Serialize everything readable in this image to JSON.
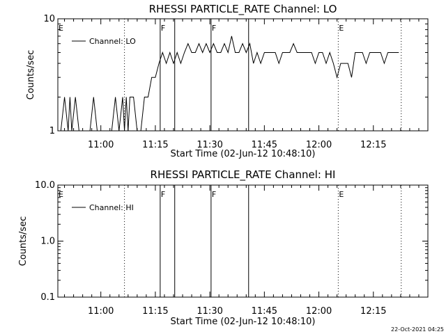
{
  "stamp": "22-Oct-2021 04:25",
  "chart_data": [
    {
      "type": "line",
      "title": "RHESSI PARTICLE_RATE Channel: LO",
      "xlabel": "Start Time (02-Jun-12 10:48:10)",
      "ylabel": "Counts/sec",
      "yscale": "log",
      "ylim": [
        1,
        10
      ],
      "yticks": [
        "1",
        "10"
      ],
      "xlim": [
        "10:48:10",
        "12:30:00"
      ],
      "xticks": [
        "11:00",
        "11:15",
        "11:30",
        "11:45",
        "12:00",
        "12:15"
      ],
      "legend": "top-left",
      "series": [
        {
          "name": "Channel: LO",
          "x": [
            "10:49:00",
            "10:50:00",
            "10:51:00",
            "10:51:30",
            "10:52:00",
            "10:53:00",
            "10:54:00",
            "10:55:00",
            "10:56:00",
            "10:57:00",
            "10:58:00",
            "10:59:00",
            "11:00:00",
            "11:01:00",
            "11:02:00",
            "11:03:00",
            "11:04:00",
            "11:05:00",
            "11:06:00",
            "11:06:30",
            "11:07:00",
            "11:07:30",
            "11:08:00",
            "11:09:00",
            "11:10:00",
            "11:11:00",
            "11:12:00",
            "11:13:00",
            "11:14:00",
            "11:15:00",
            "11:16:00",
            "11:17:00",
            "11:18:00",
            "11:19:00",
            "11:20:00",
            "11:21:00",
            "11:22:00",
            "11:23:00",
            "11:24:00",
            "11:25:00",
            "11:26:00",
            "11:27:00",
            "11:28:00",
            "11:29:00",
            "11:30:00",
            "11:31:00",
            "11:32:00",
            "11:33:00",
            "11:34:00",
            "11:35:00",
            "11:36:00",
            "11:37:00",
            "11:38:00",
            "11:39:00",
            "11:40:00",
            "11:41:00",
            "11:42:00",
            "11:43:00",
            "11:44:00",
            "11:45:00",
            "11:46:00",
            "11:47:00",
            "11:48:00",
            "11:49:00",
            "11:50:00",
            "11:51:00",
            "11:52:00",
            "11:53:00",
            "11:54:00",
            "11:55:00",
            "11:56:00",
            "11:57:00",
            "11:58:00",
            "11:59:00",
            "12:00:00",
            "12:01:00",
            "12:02:00",
            "12:03:00",
            "12:04:00",
            "12:05:00",
            "12:06:00",
            "12:07:00",
            "12:08:00",
            "12:09:00",
            "12:10:00",
            "12:11:00",
            "12:12:00",
            "12:13:00",
            "12:14:00",
            "12:15:00",
            "12:16:00",
            "12:17:00",
            "12:18:00",
            "12:19:00",
            "12:20:00",
            "12:21:00",
            "12:22:00"
          ],
          "values": [
            1,
            2,
            1,
            2,
            1,
            2,
            1,
            1,
            1,
            1,
            2,
            1,
            1,
            1,
            1,
            1,
            2,
            1,
            2,
            1,
            2,
            1,
            2,
            2,
            1,
            1,
            2,
            2,
            3,
            3,
            4,
            5,
            4,
            5,
            4,
            5,
            4,
            5,
            6,
            5,
            5,
            6,
            5,
            6,
            5,
            6,
            5,
            5,
            6,
            5,
            7,
            5,
            5,
            6,
            5,
            6,
            4,
            5,
            4,
            5,
            5,
            5,
            5,
            4,
            5,
            5,
            5,
            6,
            5,
            5,
            5,
            5,
            5,
            4,
            5,
            5,
            4,
            5,
            4,
            3,
            4,
            4,
            4,
            3,
            5,
            5,
            5,
            4,
            5,
            5,
            5,
            5,
            4,
            5,
            5,
            5,
            5
          ]
        }
      ],
      "markers": [
        {
          "label": "E",
          "time": "10:48:10",
          "style": "dotted"
        },
        {
          "label": "",
          "time": "11:06:30",
          "style": "dotted"
        },
        {
          "label": "F",
          "time": "11:16:20",
          "style": "solid"
        },
        {
          "label": "",
          "time": "11:20:20",
          "style": "solid"
        },
        {
          "label": "F",
          "time": "11:30:20",
          "style": "solid"
        },
        {
          "label": "",
          "time": "11:40:40",
          "style": "solid"
        },
        {
          "label": "E",
          "time": "12:05:20",
          "style": "dotted"
        },
        {
          "label": "",
          "time": "12:22:40",
          "style": "dotted"
        }
      ]
    },
    {
      "type": "line",
      "title": "RHESSI PARTICLE_RATE Channel: HI",
      "xlabel": "Start Time (02-Jun-12 10:48:10)",
      "ylabel": "Counts/sec",
      "yscale": "log",
      "ylim": [
        0.1,
        10
      ],
      "yticks": [
        "0.1",
        "1.0",
        "10.0"
      ],
      "xlim": [
        "10:48:10",
        "12:30:00"
      ],
      "xticks": [
        "11:00",
        "11:15",
        "11:30",
        "11:45",
        "12:00",
        "12:15"
      ],
      "legend": "top-left",
      "series": [
        {
          "name": "Channel: HI",
          "x": [],
          "values": []
        }
      ],
      "markers": [
        {
          "label": "E",
          "time": "10:48:10",
          "style": "dotted"
        },
        {
          "label": "",
          "time": "11:06:30",
          "style": "dotted"
        },
        {
          "label": "F",
          "time": "11:16:20",
          "style": "solid"
        },
        {
          "label": "",
          "time": "11:20:20",
          "style": "solid"
        },
        {
          "label": "F",
          "time": "11:30:20",
          "style": "solid"
        },
        {
          "label": "",
          "time": "11:40:40",
          "style": "solid"
        },
        {
          "label": "E",
          "time": "12:05:20",
          "style": "dotted"
        },
        {
          "label": "",
          "time": "12:22:40",
          "style": "dotted"
        }
      ]
    }
  ]
}
